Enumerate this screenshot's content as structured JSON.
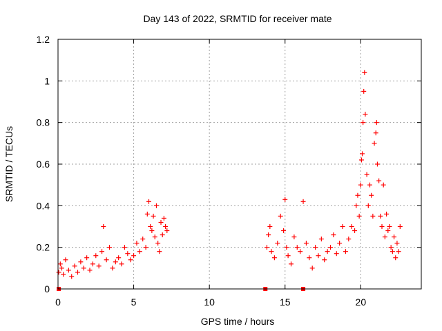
{
  "chart_data": {
    "type": "scatter",
    "title": "Day 143 of 2022, SRMTID for receiver mate",
    "xlabel": "GPS time / hours",
    "ylabel": "SRMTID / TECUs",
    "xlim": [
      0,
      24
    ],
    "ylim": [
      0,
      1.2
    ],
    "xticks": [
      0,
      5,
      10,
      15,
      20
    ],
    "yticks": [
      0,
      0.2,
      0.4,
      0.6,
      0.8,
      1,
      1.2
    ],
    "ytick_labels": [
      "0",
      "0.2",
      "0.4",
      "0.6",
      "0.8",
      "1",
      "1.2"
    ],
    "grid": true,
    "series": [
      {
        "name": "SRMTID",
        "color": "#ff0000",
        "marker": "plus",
        "x": [
          0.05,
          0.15,
          0.25,
          0.35,
          0.5,
          0.7,
          0.9,
          1.1,
          1.3,
          1.5,
          1.7,
          1.9,
          2.1,
          2.3,
          2.5,
          2.7,
          2.9,
          3.0,
          3.2,
          3.4,
          3.6,
          3.8,
          4.0,
          4.2,
          4.4,
          4.6,
          4.8,
          5.0,
          5.2,
          5.4,
          5.6,
          5.8,
          5.9,
          6.0,
          6.1,
          6.2,
          6.3,
          6.4,
          6.5,
          6.6,
          6.7,
          6.8,
          6.9,
          7.0,
          7.1,
          7.2,
          13.8,
          13.9,
          14.0,
          14.1,
          14.3,
          14.5,
          14.7,
          14.9,
          15.0,
          15.1,
          15.2,
          15.4,
          15.6,
          15.8,
          16.0,
          16.2,
          16.4,
          16.6,
          16.8,
          17.0,
          17.2,
          17.4,
          17.6,
          17.8,
          18.0,
          18.2,
          18.4,
          18.6,
          18.8,
          19.0,
          19.2,
          19.4,
          19.6,
          19.7,
          19.8,
          19.9,
          20.0,
          20.05,
          20.1,
          20.15,
          20.2,
          20.25,
          20.3,
          20.4,
          20.5,
          20.6,
          20.7,
          20.8,
          20.9,
          21.0,
          21.05,
          21.1,
          21.2,
          21.3,
          21.4,
          21.5,
          21.6,
          21.7,
          21.8,
          21.9,
          22.0,
          22.1,
          22.2,
          22.3,
          22.4,
          22.5,
          22.6
        ],
        "y": [
          0.08,
          0.12,
          0.1,
          0.07,
          0.14,
          0.09,
          0.06,
          0.11,
          0.08,
          0.13,
          0.1,
          0.15,
          0.09,
          0.12,
          0.16,
          0.11,
          0.18,
          0.3,
          0.14,
          0.2,
          0.1,
          0.13,
          0.15,
          0.12,
          0.2,
          0.17,
          0.14,
          0.16,
          0.22,
          0.18,
          0.24,
          0.2,
          0.36,
          0.42,
          0.3,
          0.28,
          0.35,
          0.25,
          0.4,
          0.22,
          0.18,
          0.32,
          0.26,
          0.34,
          0.3,
          0.28,
          0.2,
          0.26,
          0.3,
          0.18,
          0.15,
          0.22,
          0.35,
          0.28,
          0.43,
          0.2,
          0.16,
          0.12,
          0.25,
          0.2,
          0.18,
          0.42,
          0.22,
          0.15,
          0.1,
          0.2,
          0.16,
          0.24,
          0.14,
          0.18,
          0.2,
          0.26,
          0.17,
          0.22,
          0.3,
          0.18,
          0.24,
          0.3,
          0.28,
          0.4,
          0.45,
          0.35,
          0.5,
          0.62,
          0.65,
          0.8,
          0.95,
          1.04,
          0.84,
          0.55,
          0.4,
          0.5,
          0.45,
          0.35,
          0.7,
          0.75,
          0.8,
          0.6,
          0.52,
          0.35,
          0.3,
          0.5,
          0.25,
          0.36,
          0.28,
          0.3,
          0.2,
          0.18,
          0.25,
          0.15,
          0.22,
          0.18,
          0.3
        ],
        "zero_markers_x": [
          0.05,
          13.7,
          16.2
        ]
      }
    ]
  }
}
